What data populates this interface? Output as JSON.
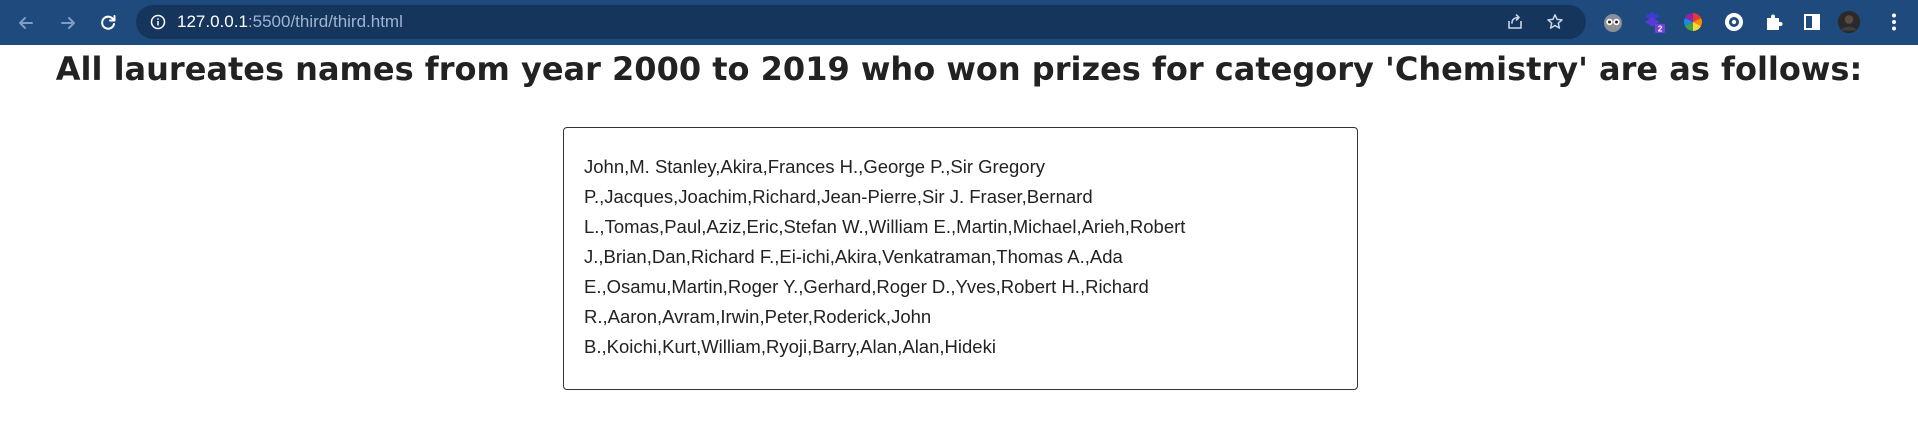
{
  "browser": {
    "url_host": "127.0.0.1",
    "url_path": ":5500/third/third.html",
    "extension_badge": "2",
    "colors": {
      "toolbar": "#1e4a7e",
      "omnibox": "#16355d"
    },
    "icons": {
      "back": "arrow-left-icon",
      "forward": "arrow-right-icon",
      "reload": "reload-icon",
      "info": "info-icon",
      "share": "share-icon",
      "bookmark": "star-icon",
      "extensions": "puzzle-icon",
      "side_panel": "side-panel-icon",
      "menu": "kebab-menu-icon"
    }
  },
  "page": {
    "title": "All laureates names from year 2000 to 2019 who won prizes for category 'Chemistry' are as follows:",
    "names": "John,M. Stanley,Akira,Frances H.,George P.,Sir Gregory P.,Jacques,Joachim,Richard,Jean-Pierre,Sir J. Fraser,Bernard L.,Tomas,Paul,Aziz,Eric,Stefan W.,William E.,Martin,Michael,Arieh,Robert J.,Brian,Dan,Richard F.,Ei-ichi,Akira,Venkatraman,Thomas A.,Ada E.,Osamu,Martin,Roger Y.,Gerhard,Roger D.,Yves,Robert H.,Richard R.,Aaron,Avram,Irwin,Peter,Roderick,John B.,Koichi,Kurt,William,Ryoji,Barry,Alan,Alan,Hideki"
  }
}
